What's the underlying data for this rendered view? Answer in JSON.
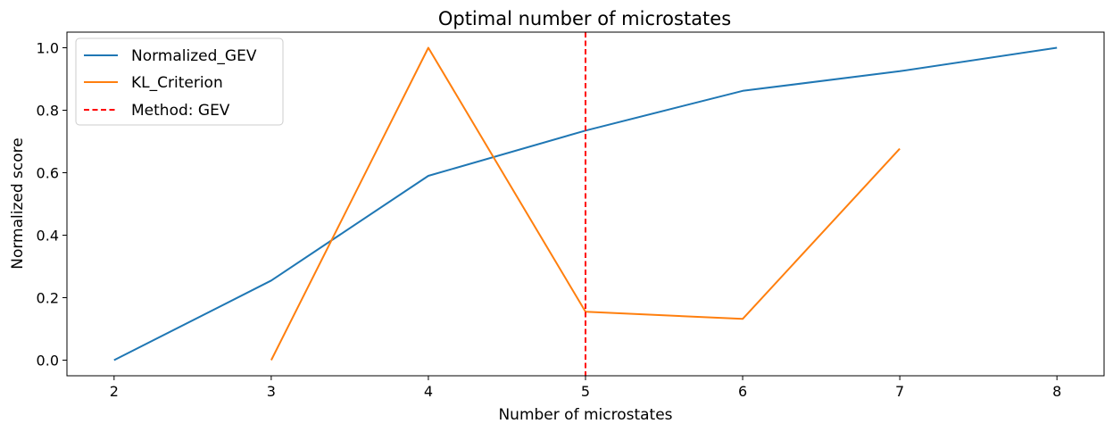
{
  "chart_data": {
    "type": "line",
    "title": "Optimal number of microstates",
    "xlabel": "Number of microstates",
    "ylabel": "Normalized score",
    "xlim": [
      1.7,
      8.3
    ],
    "ylim": [
      -0.05,
      1.05
    ],
    "xticks": [
      "2",
      "3",
      "4",
      "5",
      "6",
      "7",
      "8"
    ],
    "yticks": [
      "0.0",
      "0.2",
      "0.4",
      "0.6",
      "0.8",
      "1.0"
    ],
    "grid": false,
    "legend_position": "top-left",
    "series": [
      {
        "name": "Normalized_GEV",
        "color": "#1f77b4",
        "x": [
          2,
          3,
          4,
          5,
          6,
          7,
          8
        ],
        "y": [
          0.0,
          0.255,
          0.59,
          0.735,
          0.862,
          0.925,
          1.0
        ]
      },
      {
        "name": "KL_Criterion",
        "color": "#ff7f0e",
        "x": [
          3,
          4,
          5,
          6,
          7
        ],
        "y": [
          0.0,
          1.0,
          0.155,
          0.132,
          0.677
        ]
      }
    ],
    "vline": {
      "name": "Method: GEV",
      "x": 5,
      "color": "#ff0000",
      "style": "dashed"
    }
  }
}
